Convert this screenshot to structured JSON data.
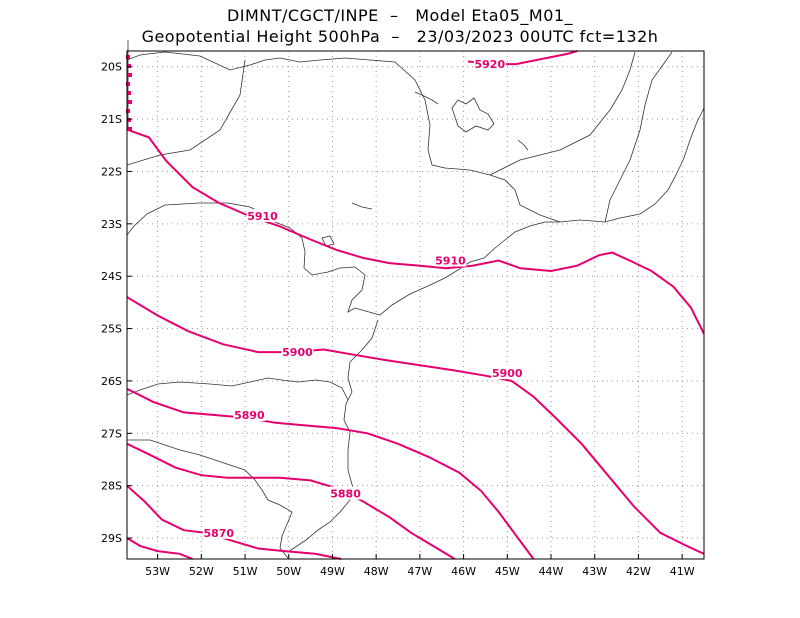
{
  "header": {
    "line1": "DIMNT/CGCT/INPE  –   Model Eta05_M01_",
    "line2": "Geopotential Height 500hPa  –   23/03/2023 00UTC fct=132h"
  },
  "map": {
    "lon_range": [
      -53.7,
      -40.5
    ],
    "lat_range": [
      -29.4,
      -19.7
    ],
    "lon_ticks": [
      "53W",
      "52W",
      "51W",
      "50W",
      "49W",
      "48W",
      "47W",
      "46W",
      "45W",
      "44W",
      "43W",
      "42W",
      "41W"
    ],
    "lat_ticks": [
      "20S",
      "21S",
      "22S",
      "23S",
      "24S",
      "25S",
      "26S",
      "27S",
      "28S",
      "29S"
    ],
    "contour_color": "#e6006e",
    "contours": [
      {
        "value": 5920,
        "label": "5920",
        "label_at": [
          -45.4,
          -19.95
        ],
        "points": [
          [
            -45.9,
            -19.9
          ],
          [
            -45.3,
            -19.95
          ],
          [
            -44.8,
            -19.95
          ],
          [
            -44.2,
            -19.85
          ],
          [
            -43.6,
            -19.75
          ],
          [
            -43.4,
            -19.7
          ]
        ]
      },
      {
        "value": 5910,
        "label": "5910",
        "label_at": [
          -50.6,
          -22.85
        ],
        "points": [
          [
            -53.7,
            -21.2
          ],
          [
            -53.2,
            -21.35
          ],
          [
            -52.8,
            -21.8
          ],
          [
            -52.2,
            -22.3
          ],
          [
            -51.6,
            -22.6
          ],
          [
            -50.9,
            -22.85
          ],
          [
            -50.2,
            -23.05
          ],
          [
            -49.5,
            -23.3
          ],
          [
            -48.9,
            -23.5
          ],
          [
            -48.3,
            -23.65
          ],
          [
            -47.7,
            -23.75
          ],
          [
            -47.0,
            -23.8
          ],
          [
            -46.4,
            -23.85
          ],
          [
            -45.8,
            -23.8
          ],
          [
            -45.2,
            -23.7
          ],
          [
            -44.7,
            -23.85
          ],
          [
            -44.0,
            -23.9
          ],
          [
            -43.4,
            -23.8
          ],
          [
            -42.9,
            -23.6
          ],
          [
            -42.6,
            -23.55
          ],
          [
            -42.2,
            -23.7
          ],
          [
            -41.7,
            -23.9
          ],
          [
            -41.2,
            -24.2
          ],
          [
            -40.8,
            -24.6
          ],
          [
            -40.5,
            -25.1
          ]
        ]
      },
      {
        "value": 5910,
        "label": "5910",
        "label_at": [
          -46.3,
          -23.7
        ],
        "points": []
      },
      {
        "value": 5900,
        "label": "5900",
        "label_at": [
          -49.8,
          -25.45
        ],
        "points": [
          [
            -53.7,
            -24.4
          ],
          [
            -53.0,
            -24.75
          ],
          [
            -52.3,
            -25.05
          ],
          [
            -51.5,
            -25.3
          ],
          [
            -50.7,
            -25.45
          ],
          [
            -49.9,
            -25.45
          ],
          [
            -49.2,
            -25.4
          ],
          [
            -48.5,
            -25.5
          ],
          [
            -47.8,
            -25.6
          ],
          [
            -47.0,
            -25.7
          ],
          [
            -46.2,
            -25.8
          ],
          [
            -45.5,
            -25.9
          ],
          [
            -44.9,
            -26.0
          ],
          [
            -44.4,
            -26.3
          ],
          [
            -43.9,
            -26.7
          ],
          [
            -43.3,
            -27.2
          ],
          [
            -42.7,
            -27.8
          ],
          [
            -42.1,
            -28.4
          ],
          [
            -41.5,
            -28.9
          ],
          [
            -40.9,
            -29.15
          ],
          [
            -40.5,
            -29.3
          ]
        ]
      },
      {
        "value": 5900,
        "label": "5900",
        "label_at": [
          -45.0,
          -25.85
        ],
        "points": []
      },
      {
        "value": 5890,
        "label": "5890",
        "label_at": [
          -50.9,
          -26.65
        ],
        "points": [
          [
            -53.7,
            -26.15
          ],
          [
            -53.1,
            -26.4
          ],
          [
            -52.4,
            -26.6
          ],
          [
            -51.7,
            -26.65
          ],
          [
            -51.0,
            -26.7
          ],
          [
            -50.3,
            -26.8
          ],
          [
            -49.6,
            -26.85
          ],
          [
            -48.9,
            -26.9
          ],
          [
            -48.2,
            -27.0
          ],
          [
            -47.5,
            -27.2
          ],
          [
            -46.8,
            -27.45
          ],
          [
            -46.1,
            -27.75
          ],
          [
            -45.6,
            -28.1
          ],
          [
            -45.2,
            -28.5
          ],
          [
            -44.8,
            -28.95
          ],
          [
            -44.4,
            -29.4
          ]
        ]
      },
      {
        "value": 5880,
        "label": "5880",
        "label_at": [
          -48.7,
          -28.15
        ],
        "points": [
          [
            -53.7,
            -27.2
          ],
          [
            -53.2,
            -27.4
          ],
          [
            -52.6,
            -27.65
          ],
          [
            -52.0,
            -27.8
          ],
          [
            -51.4,
            -27.85
          ],
          [
            -50.8,
            -27.85
          ],
          [
            -50.2,
            -27.85
          ],
          [
            -49.5,
            -27.9
          ],
          [
            -48.9,
            -28.05
          ],
          [
            -48.3,
            -28.3
          ],
          [
            -47.7,
            -28.6
          ],
          [
            -47.2,
            -28.9
          ],
          [
            -46.6,
            -29.2
          ],
          [
            -46.2,
            -29.4
          ]
        ]
      },
      {
        "value": 5870,
        "label": "5870",
        "label_at": [
          -51.6,
          -28.9
        ],
        "points": [
          [
            -53.7,
            -28.0
          ],
          [
            -53.3,
            -28.3
          ],
          [
            -52.9,
            -28.65
          ],
          [
            -52.4,
            -28.85
          ],
          [
            -51.9,
            -28.9
          ],
          [
            -51.3,
            -29.05
          ],
          [
            -50.7,
            -29.2
          ],
          [
            -50.1,
            -29.25
          ],
          [
            -49.4,
            -29.3
          ],
          [
            -48.8,
            -29.4
          ]
        ]
      },
      {
        "value": 5860,
        "label": "",
        "label_at": null,
        "points": [
          [
            -53.7,
            -29.0
          ],
          [
            -53.4,
            -29.15
          ],
          [
            -53.0,
            -29.25
          ],
          [
            -52.5,
            -29.3
          ],
          [
            -52.2,
            -29.4
          ]
        ]
      }
    ]
  }
}
